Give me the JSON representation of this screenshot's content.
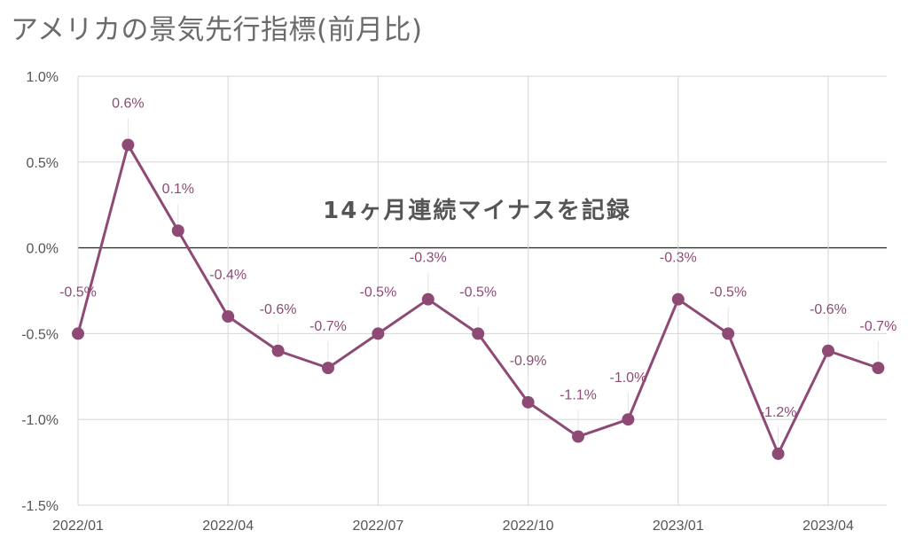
{
  "chart_data": {
    "type": "line",
    "title": "アメリカの景気先行指標(前月比)",
    "annotation": "14ヶ月連続マイナスを記録",
    "x": [
      "2022/01",
      "2022/02",
      "2022/03",
      "2022/04",
      "2022/05",
      "2022/06",
      "2022/07",
      "2022/08",
      "2022/09",
      "2022/10",
      "2022/11",
      "2022/12",
      "2023/01",
      "2023/02",
      "2023/03",
      "2023/04",
      "2023/05"
    ],
    "x_tick_labels": [
      "2022/01",
      "2022/04",
      "2022/07",
      "2022/10",
      "2023/01",
      "2023/04"
    ],
    "series": [
      {
        "values": [
          -0.5,
          0.6,
          0.1,
          -0.4,
          -0.6,
          -0.7,
          -0.5,
          -0.3,
          -0.5,
          -0.9,
          -1.1,
          -1.0,
          -0.3,
          -0.5,
          -1.2,
          -0.6,
          -0.7
        ],
        "labels": [
          "-0.5%",
          "0.6%",
          "0.1%",
          "-0.4%",
          "-0.6%",
          "-0.7%",
          "-0.5%",
          "-0.3%",
          "-0.5%",
          "-0.9%",
          "-1.1%",
          "-1.0%",
          "-0.3%",
          "-0.5%",
          "-1.2%",
          "-0.6%",
          "-0.7%"
        ],
        "color": "#8e4a74"
      }
    ],
    "y_tick_labels": [
      "1.0%",
      "0.5%",
      "0.0%",
      "-0.5%",
      "-1.0%",
      "-1.5%"
    ],
    "ylim": [
      -1.5,
      1.0
    ],
    "grid": true
  }
}
